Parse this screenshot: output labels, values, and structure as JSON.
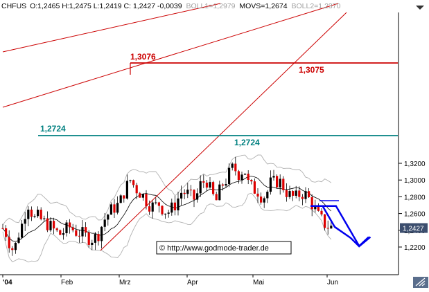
{
  "header": {
    "symbol": "CHFUS",
    "ohlc_text": "O:1,2465 H:1,2475 L:1,2419 C: 1,2427 -0,0039",
    "boll1_text": "BOLL1=1,2979",
    "movs_text": "MOVS=1,2674",
    "boll2_text": "BOLL2=1,2370"
  },
  "chart_data": {
    "type": "candlestick",
    "ylim": [
      1.208,
      1.33
    ],
    "y_ticks": [
      "1,2200",
      "1,2400",
      "1,2600",
      "1,2800",
      "1,3000",
      "1,3200"
    ],
    "x_ticks": [
      "'04",
      "Feb",
      "Mrz",
      "Apr",
      "Mai",
      "Jun"
    ],
    "last_price_label": "1,2427",
    "annotations": [
      {
        "text": "1,3076",
        "value": 1.3076,
        "color": "#cc0000"
      },
      {
        "text": "1,3075",
        "value": 1.3075,
        "color": "#cc0000"
      },
      {
        "text": "1,2724",
        "value": 1.2724,
        "color": "#008080"
      },
      {
        "text": "1,2724",
        "value": 1.2724,
        "color": "#008080"
      }
    ],
    "copyright": "© http://www.godmode-trader.de",
    "colors": {
      "up": "#000000",
      "down": "#dd0000",
      "bands": "#b0b0b0",
      "mavg": "#000000",
      "resistance": "#cc0000",
      "support": "#008080",
      "forecast": "#0000ee"
    },
    "forecast_path": [
      [
        0,
        1.269
      ],
      [
        10,
        1.269
      ],
      [
        20,
        1.244
      ],
      [
        33,
        1.231
      ],
      [
        40,
        1.221
      ],
      [
        48,
        1.232
      ]
    ],
    "forecast_path_2": [
      [
        1,
        1.269
      ],
      [
        23,
        1.269
      ],
      [
        44,
        1.221
      ],
      [
        54,
        1.232
      ]
    ]
  }
}
